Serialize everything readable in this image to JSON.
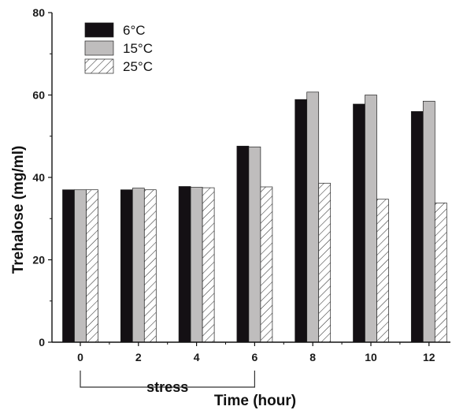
{
  "chart_data": {
    "type": "bar",
    "xlabel": "Time (hour)",
    "ylabel": "Trehalose (mg/ml)",
    "categories": [
      "0",
      "2",
      "4",
      "6",
      "8",
      "10",
      "12"
    ],
    "ylim": [
      0,
      80
    ],
    "yticks": [
      0,
      20,
      40,
      60,
      80
    ],
    "grid": false,
    "legend_position": "top-left",
    "series": [
      {
        "name": "6°C",
        "values": [
          37,
          37,
          37.8,
          47.6,
          58.9,
          57.8,
          56
        ],
        "fill": "#141014",
        "pattern": "solid"
      },
      {
        "name": "15°C",
        "values": [
          37,
          37.4,
          37.6,
          47.4,
          60.7,
          60,
          58.5
        ],
        "fill": "#bfbdbd",
        "pattern": "solid"
      },
      {
        "name": "25°C",
        "values": [
          37,
          37,
          37.5,
          37.7,
          38.6,
          34.7,
          33.8
        ],
        "fill": "#ffffff",
        "pattern": "hatch"
      }
    ],
    "annotation": {
      "text": "stress",
      "from_category": "0",
      "to_category": "6"
    }
  }
}
